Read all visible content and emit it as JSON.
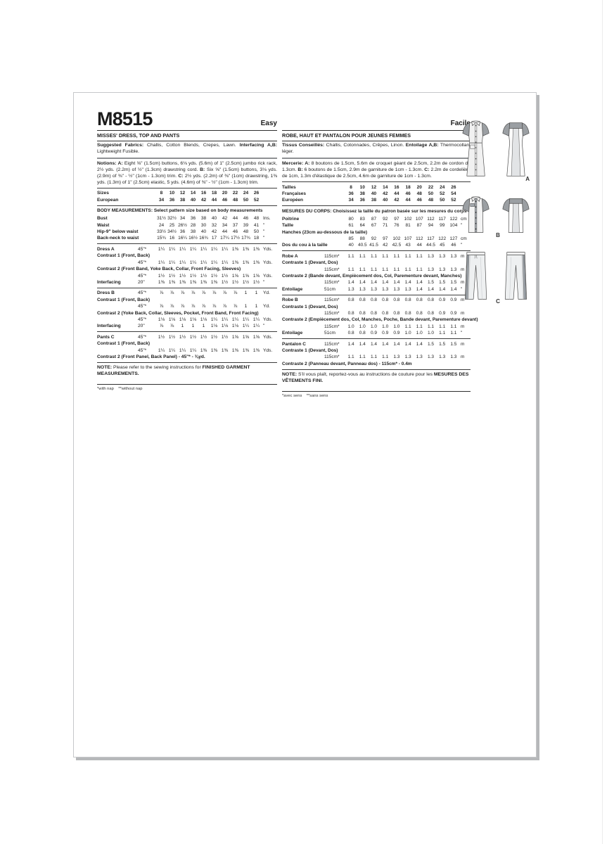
{
  "page": {
    "title": "M8515"
  },
  "en": {
    "difficulty": "Easy",
    "heading": "MISSES' DRESS, TOP AND PANTS",
    "fabrics": [
      {
        "b": 1,
        "t": "Suggested Fabrics:"
      },
      {
        "t": " Challis, Cotton Blends, Crepes, Lawn. "
      },
      {
        "b": 1,
        "t": "Interfacing A,B:"
      },
      {
        "t": " Lightweight Fusible."
      }
    ],
    "notions": [
      {
        "b": 1,
        "t": "Notions: A:"
      },
      {
        "t": " Eight ⅝\" (1.5cm) buttons, 6⅛ yds. (5.6m) of 1\" (2.5cm) jumbo rick rack, 2½ yds. (2.2m) of ½\" (1.3cm) drawstring cord. "
      },
      {
        "b": 1,
        "t": "B:"
      },
      {
        "t": " Six ⅝\" (1.5cm) buttons, 3⅛ yds. (2.9m) of ⅜\" - ½\" (1cm - 1.3cm) trim. "
      },
      {
        "b": 1,
        "t": "C:"
      },
      {
        "t": " 2½ yds. (2.2m) of ⅜\" (1cm) drawstring, 1⅜ yds. (1.3m) of 1\" (2.5cm) elastic, 5 yds. (4.6m) of ⅜\" - ½\" (1cm - 1.3cm) trim."
      }
    ],
    "table": {
      "rows": [
        {
          "r": 1
        },
        {
          "l": "Sizes",
          "b": 1,
          "v": [
            "8",
            "10",
            "12",
            "14",
            "16",
            "18",
            "20",
            "22",
            "24",
            "26"
          ],
          "u": ""
        },
        {
          "l": "European",
          "b": 1,
          "v": [
            "34",
            "36",
            "38",
            "40",
            "42",
            "44",
            "46",
            "48",
            "50",
            "52"
          ],
          "u": ""
        },
        {
          "r": 1
        },
        {
          "h": "BODY MEASUREMENTS: Select pattern size based on body measurements"
        },
        {
          "l": "Bust",
          "v": [
            "31½",
            "32½",
            "34",
            "36",
            "38",
            "40",
            "42",
            "44",
            "46",
            "48"
          ],
          "u": "Ins."
        },
        {
          "l": "Waist",
          "v": [
            "24",
            "25",
            "26½",
            "28",
            "30",
            "32",
            "34",
            "37",
            "39",
            "41"
          ],
          "u": "\""
        },
        {
          "l": "Hip-9\" below waist",
          "v": [
            "33½",
            "34½",
            "36",
            "38",
            "40",
            "42",
            "44",
            "46",
            "48",
            "50"
          ],
          "u": "\""
        },
        {
          "l": "Back-neck to waist",
          "v": [
            "15¾",
            "16",
            "16¼",
            "16½",
            "16¾",
            "17",
            "17¼",
            "17½",
            "17¾",
            "18"
          ],
          "u": "\""
        },
        {
          "r": 1
        },
        {
          "l": "Dress A",
          "c": "45\"*",
          "v": [
            "1¼",
            "1¼",
            "1¼",
            "1¼",
            "1¼",
            "1¼",
            "1¼",
            "1⅜",
            "1⅜",
            "1⅜"
          ],
          "u": "Yds."
        },
        {
          "s": "Contrast 1 (Front, Back)"
        },
        {
          "l": "",
          "c": "45\"*",
          "v": [
            "1¼",
            "1¼",
            "1¼",
            "1¼",
            "1¼",
            "1¼",
            "1¼",
            "1⅜",
            "1⅜",
            "1⅜"
          ],
          "u": "Yds."
        },
        {
          "s": "Contrast 2 (Front Band, Yoke Back, Collar, Front Facing, Sleeves)"
        },
        {
          "l": "",
          "c": "45\"*",
          "v": [
            "1½",
            "1½",
            "1½",
            "1½",
            "1½",
            "1½",
            "1½",
            "1⅝",
            "1⅝",
            "1⅝"
          ],
          "u": "Yds."
        },
        {
          "l": "Interfacing",
          "c": "20\"",
          "v": [
            "1⅜",
            "1⅜",
            "1⅜",
            "1⅜",
            "1⅜",
            "1⅜",
            "1½",
            "1½",
            "1½",
            "1½"
          ],
          "u": "\""
        },
        {
          "r": 1
        },
        {
          "l": "Dress B",
          "c": "45\"*",
          "v": [
            "⅞",
            "⅞",
            "⅞",
            "⅞",
            "⅞",
            "⅞",
            "⅞",
            "⅞",
            "1",
            "1"
          ],
          "u": "Yd."
        },
        {
          "s": "Contrast 1 (Front, Back)"
        },
        {
          "l": "",
          "c": "45\"*",
          "v": [
            "⅞",
            "⅞",
            "⅞",
            "⅞",
            "⅞",
            "⅞",
            "⅞",
            "⅞",
            "1",
            "1"
          ],
          "u": "Yd."
        },
        {
          "s": "Contrast 2 (Yoke Back, Collar, Sleeves, Pocket, Front Band, Front Facing)"
        },
        {
          "l": "",
          "c": "45\"*",
          "v": [
            "1⅛",
            "1⅛",
            "1⅛",
            "1⅛",
            "1⅛",
            "1¼",
            "1¼",
            "1¼",
            "1¼",
            "1¼"
          ],
          "u": "Yds."
        },
        {
          "l": "Interfacing",
          "c": "20\"",
          "v": [
            "⅞",
            "⅞",
            "1",
            "1",
            "1",
            "1⅛",
            "1⅛",
            "1⅛",
            "1¼",
            "1¼"
          ],
          "u": "\""
        },
        {
          "r": 1
        },
        {
          "l": "Pants C",
          "c": "45\"*",
          "v": [
            "1½",
            "1½",
            "1½",
            "1½",
            "1½",
            "1½",
            "1½",
            "1⅝",
            "1⅝",
            "1⅝"
          ],
          "u": "Yds."
        },
        {
          "s": "Contrast 1 (Front, Back)"
        },
        {
          "l": "",
          "c": "45\"*",
          "v": [
            "1¼",
            "1¼",
            "1¼",
            "1¼",
            "1⅜",
            "1⅜",
            "1⅜",
            "1⅜",
            "1⅜",
            "1⅜"
          ],
          "u": "Yds."
        },
        {
          "s": "Contrast 2 (Front Panel, Back Panel) - 45\"* - ⅜yd."
        },
        {
          "r": 1
        }
      ]
    },
    "note": [
      {
        "b": 1,
        "t": "NOTE:"
      },
      {
        "t": " Please refer to the sewing instructions for "
      },
      {
        "b": 1,
        "t": "FINISHED GARMENT MEASUREMENTS."
      }
    ],
    "nap": "*with nap    **without nap"
  },
  "fr": {
    "difficulty": "Facile",
    "heading": "ROBE, HAUT ET PANTALON POUR JEUNES FEMMES",
    "fabrics": [
      {
        "b": 1,
        "t": "Tissus Conseillés:"
      },
      {
        "t": " Challis, Cotonnades, Crêpes, Linon. "
      },
      {
        "b": 1,
        "t": "Entoilage A,B:"
      },
      {
        "t": " Thermocollant léger."
      }
    ],
    "notions": [
      {
        "b": 1,
        "t": "Mercerie: A:"
      },
      {
        "t": " 8 boutons de 1.5cm,  5.6m de croquet géant de 2.5cm, 2.2m de cordon de 1.3cm. "
      },
      {
        "b": 1,
        "t": "B:"
      },
      {
        "t": " 6 boutons de 1.5cm, 2.9m de garniture de 1cm - 1.3cm. "
      },
      {
        "b": 1,
        "t": "C:"
      },
      {
        "t": " 2.2m de cordelière de 1cm, 1.3m d'élastique de 2.5cm, 4.6m de garniture de 1cm - 1.3cm."
      }
    ],
    "table": {
      "rows": [
        {
          "r": 1
        },
        {
          "l": "Tailles",
          "b": 1,
          "v": [
            "8",
            "10",
            "12",
            "14",
            "16",
            "18",
            "20",
            "22",
            "24",
            "26"
          ],
          "u": ""
        },
        {
          "l": "Françaises",
          "b": 1,
          "v": [
            "36",
            "38",
            "40",
            "42",
            "44",
            "46",
            "48",
            "50",
            "52",
            "54"
          ],
          "u": ""
        },
        {
          "l": "Européen",
          "b": 1,
          "v": [
            "34",
            "36",
            "38",
            "40",
            "42",
            "44",
            "46",
            "48",
            "50",
            "52"
          ],
          "u": ""
        },
        {
          "r": 1
        },
        {
          "h": "MESURES DU CORPS: Choisissez la taille du patron basée sur les mesures du corps"
        },
        {
          "l": "Poitrine",
          "v": [
            "80",
            "83",
            "87",
            "92",
            "97",
            "102",
            "107",
            "112",
            "117",
            "122"
          ],
          "u": "cm"
        },
        {
          "l": "Taille",
          "v": [
            "61",
            "64",
            "67",
            "71",
            "76",
            "81",
            "87",
            "94",
            "99",
            "104"
          ],
          "u": "\""
        },
        {
          "s": "Hanches (23cm au-dessous de la taille)"
        },
        {
          "l": "",
          "v": [
            "85",
            "88",
            "92",
            "97",
            "102",
            "107",
            "112",
            "117",
            "122",
            "127"
          ],
          "u": "cm"
        },
        {
          "l": "Dos du cou à la taille",
          "v": [
            "40",
            "40.5",
            "41.5",
            "42",
            "42.5",
            "43",
            "44",
            "44.5",
            "45",
            "46"
          ],
          "u": "\""
        },
        {
          "r": 1
        },
        {
          "l": "Robe A",
          "c": "115cm*",
          "v": [
            "1.1",
            "1.1",
            "1.1",
            "1.1",
            "1.1",
            "1.1",
            "1.1",
            "1.3",
            "1.3",
            "1.3"
          ],
          "u": "m"
        },
        {
          "s": "Contraste 1 (Devant, Dos)"
        },
        {
          "l": "",
          "c": "115cm*",
          "v": [
            "1.1",
            "1.1",
            "1.1",
            "1.1",
            "1.1",
            "1.1",
            "1.1",
            "1.3",
            "1.3",
            "1.3"
          ],
          "u": "m"
        },
        {
          "s": "Contraste 2 (Bande devant, Empiècement dos, Col, Parementure devant, Manches)"
        },
        {
          "l": "",
          "c": "115cm*",
          "v": [
            "1.4",
            "1.4",
            "1.4",
            "1.4",
            "1.4",
            "1.4",
            "1.4",
            "1.5",
            "1.5",
            "1.5"
          ],
          "u": "m"
        },
        {
          "l": "Entoilage",
          "c": "51cm",
          "v": [
            "1.3",
            "1.3",
            "1.3",
            "1.3",
            "1.3",
            "1.3",
            "1.4",
            "1.4",
            "1.4",
            "1.4"
          ],
          "u": "\""
        },
        {
          "r": 1
        },
        {
          "l": "Robe B",
          "c": "115cm*",
          "v": [
            "0.8",
            "0.8",
            "0.8",
            "0.8",
            "0.8",
            "0.8",
            "0.8",
            "0.8",
            "0.9",
            "0.9"
          ],
          "u": "m"
        },
        {
          "s": "Contraste 1 (Devant, Dos)"
        },
        {
          "l": "",
          "c": "115cm*",
          "v": [
            "0.8",
            "0.8",
            "0.8",
            "0.8",
            "0.8",
            "0.8",
            "0.8",
            "0.8",
            "0.9",
            "0.9"
          ],
          "u": "m"
        },
        {
          "s": "Contraste 2 (Empiècement dos, Col, Manches, Poche, Bande devant, Parementure devant)"
        },
        {
          "l": "",
          "c": "115cm*",
          "v": [
            "1.0",
            "1.0",
            "1.0",
            "1.0",
            "1.0",
            "1.1",
            "1.1",
            "1.1",
            "1.1",
            "1.1"
          ],
          "u": "m"
        },
        {
          "l": "Entoilage",
          "c": "51cm",
          "v": [
            "0.8",
            "0.8",
            "0.9",
            "0.9",
            "0.9",
            "1.0",
            "1.0",
            "1.0",
            "1.1",
            "1.1"
          ],
          "u": "\""
        },
        {
          "r": 1
        },
        {
          "l": "Pantalon C",
          "c": "115cm*",
          "v": [
            "1.4",
            "1.4",
            "1.4",
            "1.4",
            "1.4",
            "1.4",
            "1.4",
            "1.5",
            "1.5",
            "1.5"
          ],
          "u": "m"
        },
        {
          "s": "Contraste 1 (Devant, Dos)"
        },
        {
          "l": "",
          "c": "115cm*",
          "v": [
            "1.1",
            "1.1",
            "1.1",
            "1.1",
            "1.3",
            "1.3",
            "1.3",
            "1.3",
            "1.3",
            "1.3"
          ],
          "u": "m"
        },
        {
          "s": "Contraste 2 (Panneau devant, Panneau dos) - 115cm* - 0.4m"
        },
        {
          "r": 1
        }
      ]
    },
    "note": [
      {
        "b": 1,
        "t": "NOTE:"
      },
      {
        "t": " S'il vous plaît, reportez-vous au instructions de couture pour les "
      },
      {
        "b": 1,
        "t": "MESURES DES VÊTEMENTS FINI."
      }
    ],
    "nap": "*avec sens    **sans sens"
  },
  "figures": [
    {
      "label": "A"
    },
    {
      "label": "B"
    },
    {
      "label": "C"
    }
  ]
}
